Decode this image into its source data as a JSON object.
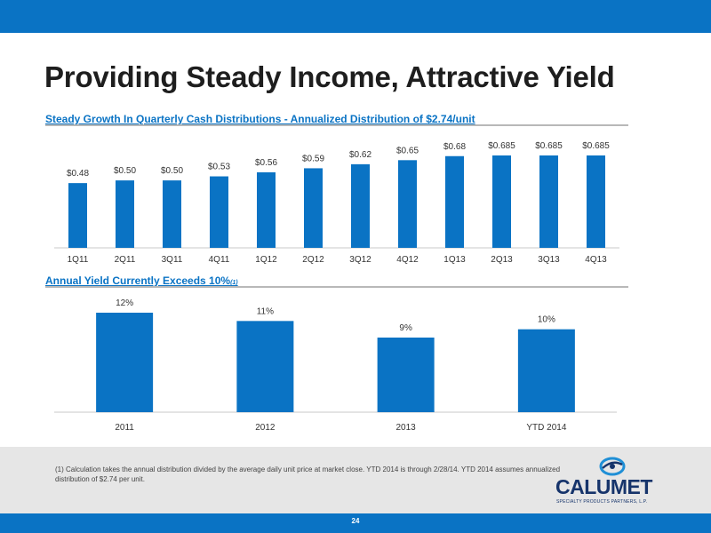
{
  "slide": {
    "title": "Providing Steady Income, Attractive Yield",
    "page_number": "24",
    "footnote": "(1)  Calculation takes the annual distribution divided by the average daily unit price at market close.  YTD 2014 is through 2/28/14.  YTD 2014 assumes annualized distribution of $2.74 per unit.",
    "logo": {
      "name": "CALUMET",
      "tagline": "SPECIALTY PRODUCTS PARTNERS, L.P.",
      "icon": "calumet-logo-mark"
    },
    "colors": {
      "bar": "#0a73c4",
      "band": "#0a73c4",
      "footer": "#e6e6e6",
      "logo": "#16346b"
    }
  },
  "chart_data": [
    {
      "type": "bar",
      "title": "Steady Growth In Quarterly Cash Distributions - Annualized Distribution of $2.74/unit",
      "categories": [
        "1Q11",
        "2Q11",
        "3Q11",
        "4Q11",
        "1Q12",
        "2Q12",
        "3Q12",
        "4Q12",
        "1Q13",
        "2Q13",
        "3Q13",
        "4Q13"
      ],
      "values": [
        0.48,
        0.5,
        0.5,
        0.53,
        0.56,
        0.59,
        0.62,
        0.65,
        0.68,
        0.685,
        0.685,
        0.685
      ],
      "data_labels": [
        "$0.48",
        "$0.50",
        "$0.50",
        "$0.53",
        "$0.56",
        "$0.59",
        "$0.62",
        "$0.65",
        "$0.68",
        "$0.685",
        "$0.685",
        "$0.685"
      ],
      "xlabel": "",
      "ylabel": "",
      "ylim": [
        0,
        0.685
      ],
      "grid": false
    },
    {
      "type": "bar",
      "title": "Annual Yield Currently Exceeds 10%",
      "title_footnote": "(1)",
      "categories": [
        "2011",
        "2012",
        "2013",
        "YTD 2014"
      ],
      "values": [
        12,
        11,
        9,
        10
      ],
      "data_labels": [
        "12%",
        "11%",
        "9%",
        "10%"
      ],
      "xlabel": "",
      "ylabel": "",
      "ylim": [
        0,
        12
      ],
      "grid": false
    }
  ]
}
